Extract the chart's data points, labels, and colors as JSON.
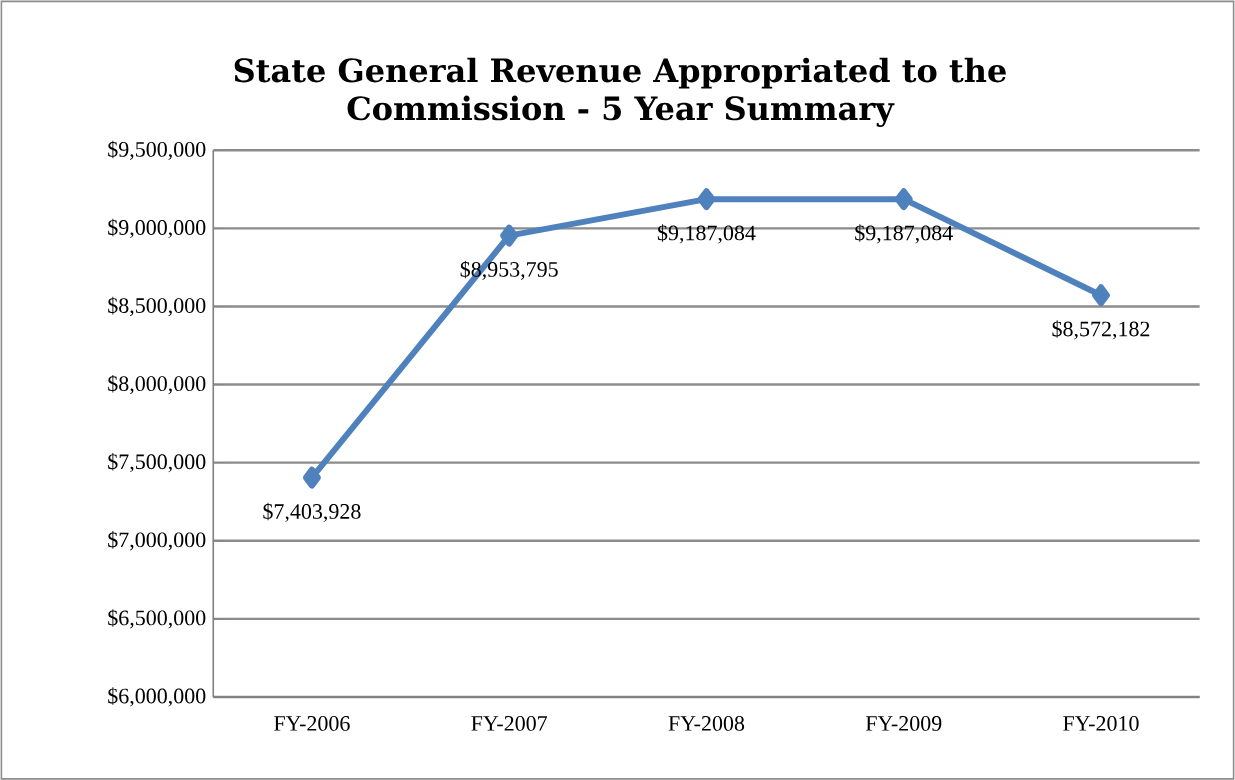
{
  "chart_data": {
    "type": "line",
    "title": "State General Revenue Appropriated to the Commission - 5 Year Summary",
    "categories": [
      "FY-2006",
      "FY-2007",
      "FY-2008",
      "FY-2009",
      "FY-2010"
    ],
    "series": [
      {
        "color": "#4f81bd",
        "values": [
          7403928,
          8953795,
          9187084,
          9187084,
          8572182
        ],
        "value_labels": [
          "$7,403,928",
          "$8,953,795",
          "$9,187,084",
          "$9,187,084",
          "$8,572,182"
        ]
      }
    ],
    "ylim": [
      6000000,
      9500000
    ],
    "yticks": [
      {
        "value": 6000000,
        "label": "$6,000,000"
      },
      {
        "value": 6500000,
        "label": "$6,500,000"
      },
      {
        "value": 7000000,
        "label": "$7,000,000"
      },
      {
        "value": 7500000,
        "label": "$7,500,000"
      },
      {
        "value": 8000000,
        "label": "$8,000,000"
      },
      {
        "value": 8500000,
        "label": "$8,500,000"
      },
      {
        "value": 9000000,
        "label": "$9,000,000"
      },
      {
        "value": 9500000,
        "label": "$9,500,000"
      }
    ],
    "grid": "y",
    "marker": "diamond",
    "line_style": "solid"
  }
}
